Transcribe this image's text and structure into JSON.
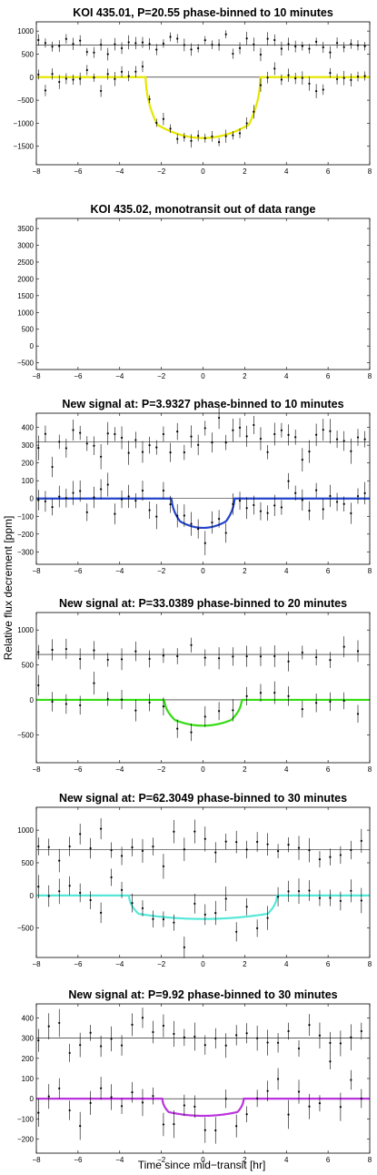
{
  "figure": {
    "ylabel": "Relative flux decrement [ppm]",
    "xlabel": "Time since mid−transit [hr]"
  },
  "chart_data": [
    {
      "type": "scatter",
      "title": "KOI 435.01, P=20.55 phase-binned to 10 minutes",
      "xlim": [
        -8,
        8
      ],
      "ylim": [
        -1900,
        1200
      ],
      "xticks": [
        -8,
        -6,
        -4,
        -2,
        0,
        2,
        4,
        6,
        8
      ],
      "yticks": [
        -1500,
        -1000,
        -500,
        0,
        500,
        1000
      ],
      "offset": 700,
      "depth": 1320,
      "t1": 2.75,
      "t2": 2.2,
      "bin_minutes": 10,
      "model_color": "#e6e600",
      "noise": 110,
      "err": 120
    },
    {
      "type": "scatter",
      "title": "KOI 435.02, monotransit out of data range",
      "xlim": [
        -8,
        8
      ],
      "ylim": [
        -700,
        3800
      ],
      "xticks": [
        -8,
        -6,
        -4,
        -2,
        0,
        2,
        4,
        6,
        8
      ],
      "yticks": [
        -500,
        0,
        500,
        1000,
        1500,
        2000,
        2500,
        3000,
        3500
      ],
      "empty": true
    },
    {
      "type": "scatter",
      "title": "New signal at: P=3.9327 phase-binned to 10 minutes",
      "xlim": [
        -8,
        8
      ],
      "ylim": [
        -370,
        480
      ],
      "xticks": [
        -8,
        -6,
        -4,
        -2,
        0,
        2,
        4,
        6,
        8
      ],
      "yticks": [
        -300,
        -200,
        -100,
        0,
        100,
        200,
        300,
        400
      ],
      "offset": 320,
      "depth": 165,
      "t1": 1.5,
      "t2": 1.1,
      "bin_minutes": 10,
      "model_color": "#2244cc",
      "noise": 50,
      "err": 55
    },
    {
      "type": "scatter",
      "title": "New signal at: P=33.0389 phase-binned to 20 minutes",
      "xlim": [
        -8,
        8
      ],
      "ylim": [
        -900,
        1250
      ],
      "xticks": [
        -8,
        -6,
        -4,
        -2,
        0,
        2,
        4,
        6,
        8
      ],
      "yticks": [
        -500,
        0,
        500,
        1000
      ],
      "offset": 650,
      "depth": 370,
      "t1": 1.85,
      "t2": 1.35,
      "bin_minutes": 20,
      "model_color": "#33dd11",
      "noise": 110,
      "err": 130
    },
    {
      "type": "scatter",
      "title": "New signal at: P=62.3049 phase-binned to 30 minutes",
      "xlim": [
        -8,
        8
      ],
      "ylim": [
        -950,
        1350
      ],
      "xticks": [
        -8,
        -6,
        -4,
        -2,
        0,
        2,
        4,
        6,
        8
      ],
      "yticks": [
        -500,
        0,
        500,
        1000
      ],
      "offset": 700,
      "depth": 360,
      "t1": 3.55,
      "t2": 3.1,
      "bin_minutes": 30,
      "model_color": "#55e8d8",
      "noise": 150,
      "err": 150
    },
    {
      "type": "scatter",
      "title": "New signal at: P=9.92 phase-binned to 30 minutes",
      "xlim": [
        -8,
        8
      ],
      "ylim": [
        -270,
        470
      ],
      "xticks": [
        -8,
        -6,
        -4,
        -2,
        0,
        2,
        4,
        6,
        8
      ],
      "yticks": [
        -200,
        -100,
        0,
        100,
        200,
        300,
        400
      ],
      "offset": 300,
      "depth": 85,
      "t1": 1.95,
      "t2": 1.65,
      "bin_minutes": 30,
      "model_color": "#bb33dd",
      "noise": 55,
      "err": 55
    }
  ]
}
